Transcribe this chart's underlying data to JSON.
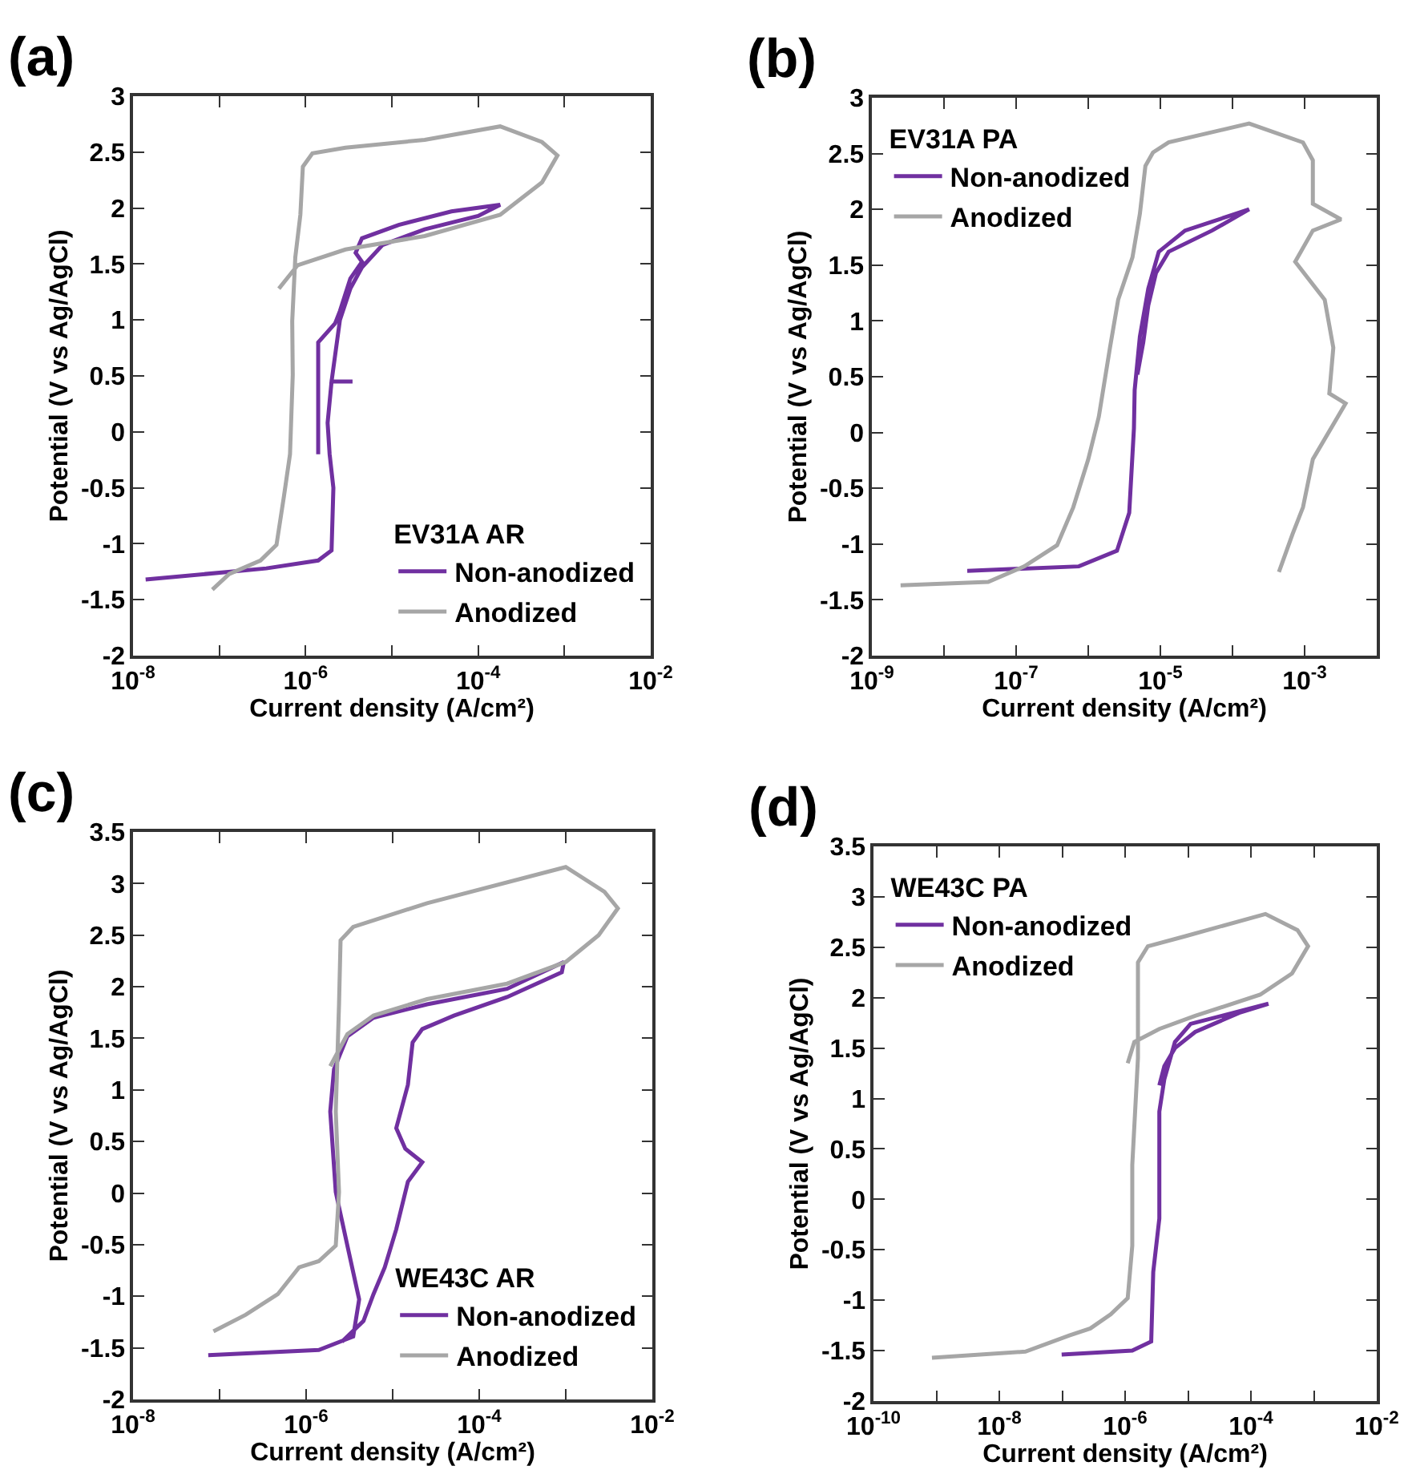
{
  "chart_data": [
    {
      "type": "line",
      "title": "(a)",
      "xlabel": "Current density (A/cm²)",
      "ylabel": "Potential (V vs Ag/AgCl)",
      "legend_title": "EV31A AR",
      "legend": "bottom right",
      "log": "x",
      "xlim": [
        1e-08,
        0.01
      ],
      "xticks": [
        {
          "value": 1e-08,
          "label": "10$^{-8}$"
        },
        {
          "value": 1e-07,
          "label": null
        },
        {
          "value": 1e-06,
          "label": "10$^{-6}$"
        },
        {
          "value": 1e-05,
          "label": null
        },
        {
          "value": 0.0001,
          "label": "10$^{-4}$"
        },
        {
          "value": 0.001,
          "label": null
        },
        {
          "value": 0.01,
          "label": "10$^{-2}$"
        }
      ],
      "ylim": [
        -2,
        3
      ],
      "yticks": [
        -2,
        -1.5,
        -1,
        -0.5,
        0,
        0.5,
        1,
        1.5,
        2,
        2.5,
        3
      ],
      "series": [
        {
          "name": "Non-anodized",
          "color": "#7030a0",
          "x": [
            1.4e-08,
            3.5e-07,
            1.4e-06,
            2e-06,
            2.1e-06,
            1.9e-06,
            1.8e-06,
            2e-06,
            3.5e-06,
            2e-06,
            2.5e-06,
            3.3e-06,
            4.5e-06,
            7.8e-06,
            2.4e-05,
            0.0001,
            0.00018,
            4.9e-05,
            1.2e-05,
            4.5e-06,
            3.8e-06,
            4.5e-06,
            3.3e-06,
            2.5e-06,
            2.2e-06,
            1.4e-06,
            1.4e-06,
            1.4e-06
          ],
          "values": [
            -1.32,
            -1.22,
            -1.15,
            -1.06,
            -0.5,
            -0.2,
            0.08,
            0.45,
            0.45,
            0.45,
            1.0,
            1.28,
            1.47,
            1.67,
            1.81,
            1.93,
            2.03,
            1.97,
            1.85,
            1.73,
            1.6,
            1.52,
            1.37,
            1.08,
            0.97,
            0.8,
            0.04,
            -0.2
          ]
        },
        {
          "name": "Anodized",
          "color": "#a6a6a6",
          "x": [
            8.3e-08,
            1.3e-07,
            3e-07,
            4.6e-07,
            5.6e-07,
            6.6e-07,
            7.1e-07,
            7e-07,
            7.6e-07,
            8.7e-07,
            9.3e-07,
            1.2e-06,
            2.9e-06,
            2.4e-05,
            0.00018,
            0.00055,
            0.00083,
            0.00055,
            0.00018,
            2.4e-05,
            2.9e-06,
            8.1e-07,
            4.9e-07
          ],
          "values": [
            -1.41,
            -1.27,
            -1.15,
            -1.01,
            -0.58,
            -0.2,
            0.51,
            0.99,
            1.56,
            1.94,
            2.37,
            2.49,
            2.54,
            2.61,
            2.73,
            2.59,
            2.47,
            2.23,
            1.94,
            1.75,
            1.63,
            1.49,
            1.28
          ]
        }
      ]
    },
    {
      "type": "line",
      "title": "(b)",
      "xlabel": "Current density (A/cm²)",
      "ylabel": "Potential (V vs Ag/AgCl)",
      "legend_title": "EV31A PA",
      "legend": "top left",
      "log": "x",
      "xlim": [
        1e-09,
        0.01
      ],
      "xticks": [
        {
          "value": 1e-09,
          "label": "10$^{-9}$"
        },
        {
          "value": 1e-08,
          "label": null
        },
        {
          "value": 1e-07,
          "label": "10$^{-7}$"
        },
        {
          "value": 1e-06,
          "label": null
        },
        {
          "value": 1e-05,
          "label": "10$^{-5}$"
        },
        {
          "value": 0.0001,
          "label": null
        },
        {
          "value": 0.001,
          "label": "10$^{-3}$"
        },
        {
          "value": 0.01,
          "label": null
        }
      ],
      "ylim": [
        -2,
        3
      ],
      "yticks": [
        -2,
        -1.5,
        -1,
        -0.5,
        0,
        0.5,
        1,
        1.5,
        2,
        2.5,
        3
      ],
      "series": [
        {
          "name": "Non-anodized",
          "color": "#7030a0",
          "x": [
            2.1e-08,
            7.4e-07,
            2.5e-06,
            3.7e-06,
            4.3e-06,
            4.4e-06,
            5.2e-06,
            6.8e-06,
            9.5e-06,
            2.2e-05,
            0.00017,
            5.2e-05,
            1.3e-05,
            8.7e-06,
            6.8e-06,
            5.8e-06,
            4.8e-06
          ],
          "values": [
            -1.24,
            -1.2,
            -1.06,
            -0.72,
            0.04,
            0.38,
            0.86,
            1.29,
            1.62,
            1.81,
            2.0,
            1.81,
            1.62,
            1.43,
            1.14,
            0.81,
            0.52
          ]
        },
        {
          "name": "Anodized",
          "color": "#a6a6a6",
          "x": [
            2.5e-09,
            4.1e-08,
            1.3e-07,
            3.7e-07,
            6.2e-07,
            1e-06,
            1.4e-06,
            2e-06,
            2.6e-06,
            4.1e-06,
            5.2e-06,
            6.2e-06,
            7.9e-06,
            1.3e-05,
            0.00017,
            0.00095,
            0.0013,
            0.0013,
            0.0032,
            0.0013,
            0.00074,
            0.0019,
            0.0025,
            0.0022,
            0.0037,
            0.0013,
            0.00095,
            0.00068,
            0.00044
          ],
          "values": [
            -1.37,
            -1.34,
            -1.2,
            -1.01,
            -0.67,
            -0.24,
            0.14,
            0.76,
            1.19,
            1.57,
            1.96,
            2.39,
            2.51,
            2.6,
            2.77,
            2.6,
            2.44,
            2.05,
            1.91,
            1.81,
            1.53,
            1.19,
            0.76,
            0.35,
            0.26,
            -0.24,
            -0.67,
            -0.91,
            -1.25
          ]
        }
      ]
    },
    {
      "type": "line",
      "title": "(c)",
      "xlabel": "Current density (A/cm²)",
      "ylabel": "Potential (V vs Ag/AgCl)",
      "legend_title": "WE43C AR",
      "legend": "bottom right",
      "log": "x",
      "xlim": [
        1e-08,
        0.01
      ],
      "xticks": [
        {
          "value": 1e-08,
          "label": "10$^{-8}$"
        },
        {
          "value": 1e-07,
          "label": null
        },
        {
          "value": 1e-06,
          "label": "10$^{-6}$"
        },
        {
          "value": 1e-05,
          "label": null
        },
        {
          "value": 0.0001,
          "label": "10$^{-4}$"
        },
        {
          "value": 0.001,
          "label": null
        },
        {
          "value": 0.01,
          "label": "10$^{-2}$"
        }
      ],
      "ylim": [
        -2,
        3.5
      ],
      "yticks": [
        -2,
        -1.5,
        -1,
        -0.5,
        0,
        0.5,
        1,
        1.5,
        2,
        2.5,
        3,
        3.5
      ],
      "series": [
        {
          "name": "Non-anodized",
          "color": "#7030a0",
          "x": [
            7.4e-08,
            1.4e-06,
            3.5e-06,
            4.1e-06,
            3e-06,
            2.2e-06,
            1.9e-06,
            2.1e-06,
            3e-06,
            6e-06,
            2.5e-05,
            0.00021,
            0.00095,
            0.0009,
            0.00021,
            5.1e-05,
            2.2e-05,
            1.7e-05,
            1.5e-05,
            1.1e-05,
            1.4e-05,
            2.2e-05,
            1.5e-05,
            1.1e-05,
            8.1e-06,
            6e-06,
            4.6e-06,
            2.6e-06
          ],
          "values": [
            -1.57,
            -1.52,
            -1.39,
            -1.03,
            -0.51,
            0.01,
            0.79,
            1.2,
            1.52,
            1.7,
            1.83,
            1.98,
            2.24,
            2.14,
            1.9,
            1.72,
            1.59,
            1.46,
            1.05,
            0.63,
            0.43,
            0.3,
            0.11,
            -0.35,
            -0.72,
            -0.98,
            -1.24,
            -1.44
          ]
        },
        {
          "name": "Anodized",
          "color": "#a6a6a6",
          "x": [
            8.5e-08,
            2e-07,
            4.7e-07,
            8.3e-07,
            1.4e-06,
            2.2e-06,
            2.4e-06,
            2.2e-06,
            2.4e-06,
            2.5e-06,
            3.5e-06,
            2.5e-05,
            0.001,
            0.0028,
            0.004,
            0.0024,
            0.001,
            0.00021,
            2.5e-05,
            6e-06,
            3e-06,
            1.9e-06
          ],
          "values": [
            -1.34,
            -1.18,
            -0.98,
            -0.72,
            -0.66,
            -0.51,
            0.01,
            0.79,
            1.83,
            2.45,
            2.58,
            2.81,
            3.16,
            2.92,
            2.76,
            2.5,
            2.24,
            2.03,
            1.88,
            1.72,
            1.54,
            1.23
          ]
        }
      ]
    },
    {
      "type": "line",
      "title": "(d)",
      "xlabel": "Current density (A/cm²)",
      "ylabel": "Potential (V vs Ag/AgCl)",
      "legend_title": "WE43C PA",
      "legend": "top left",
      "log": "x",
      "xlim": [
        1e-10,
        0.01
      ],
      "xticks": [
        {
          "value": 1e-10,
          "label": "10$^{-10}$"
        },
        {
          "value": 1e-09,
          "label": null
        },
        {
          "value": 1e-08,
          "label": "10$^{-8}$"
        },
        {
          "value": 1e-07,
          "label": null
        },
        {
          "value": 1e-06,
          "label": "10$^{-6}$"
        },
        {
          "value": 1e-05,
          "label": null
        },
        {
          "value": 0.0001,
          "label": "10$^{-4}$"
        },
        {
          "value": 0.001,
          "label": null
        },
        {
          "value": 0.01,
          "label": "10$^{-2}$"
        }
      ],
      "ylim": [
        -2,
        3.5
      ],
      "yticks": [
        -2,
        -1.5,
        -1,
        -0.5,
        0,
        0.5,
        1,
        1.5,
        2,
        2.5,
        3,
        3.5
      ],
      "series": [
        {
          "name": "Non-anodized",
          "color": "#7030a0",
          "x": [
            9.8e-08,
            1.3e-06,
            2.6e-06,
            2.8e-06,
            3.5e-06,
            3.5e-06,
            4.2e-06,
            6.2e-06,
            1.1e-05,
            0.00019,
            6.5e-05,
            1.3e-05,
            6.2e-06,
            4.2e-06,
            3.5e-06
          ],
          "values": [
            -1.54,
            -1.5,
            -1.41,
            -0.72,
            -0.19,
            0.87,
            1.19,
            1.56,
            1.74,
            1.94,
            1.85,
            1.66,
            1.5,
            1.32,
            1.13
          ]
        },
        {
          "name": "Anodized",
          "color": "#a6a6a6",
          "x": [
            8.5e-10,
            2.6e-08,
            1.3e-07,
            2.8e-07,
            5.9e-07,
            1.1e-06,
            1.3e-06,
            1.3e-06,
            1.6e-06,
            1.6e-06,
            2.3e-06,
            9.1e-06,
            0.00017,
            0.00055,
            0.00081,
            0.00045,
            0.00014,
            1.3e-05,
            3.5e-06,
            1.4e-06,
            1.1e-06
          ],
          "values": [
            -1.57,
            -1.51,
            -1.35,
            -1.28,
            -1.14,
            -0.98,
            -0.46,
            0.34,
            1.4,
            2.35,
            2.51,
            2.61,
            2.83,
            2.67,
            2.51,
            2.24,
            2.03,
            1.82,
            1.69,
            1.56,
            1.35
          ]
        }
      ]
    }
  ]
}
